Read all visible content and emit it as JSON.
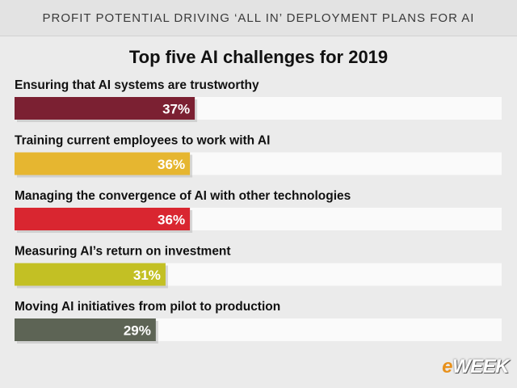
{
  "header": {
    "banner": "PROFIT POTENTIAL DRIVING ‘ALL IN’ DEPLOYMENT PLANS FOR AI"
  },
  "brand": {
    "prefix": "e",
    "name": "WEEK"
  },
  "chart_data": {
    "type": "bar",
    "orientation": "horizontal",
    "title": "Top five AI challenges for 2019",
    "categories": [
      "Ensuring that AI systems are trustworthy",
      "Training current employees to work with AI",
      "Managing the convergence of AI with other technologies",
      "Measuring AI’s return on investment",
      "Moving AI initiatives from pilot to production"
    ],
    "values": [
      37,
      36,
      36,
      31,
      29
    ],
    "value_labels": [
      "37%",
      "36%",
      "36%",
      "31%",
      "29%"
    ],
    "bar_colors": [
      "#7b2032",
      "#e6b630",
      "#d92630",
      "#c3c024",
      "#5d6455"
    ],
    "track_color": "#fafafa",
    "xlim": [
      0,
      100
    ],
    "grid": false,
    "legend": "none"
  }
}
